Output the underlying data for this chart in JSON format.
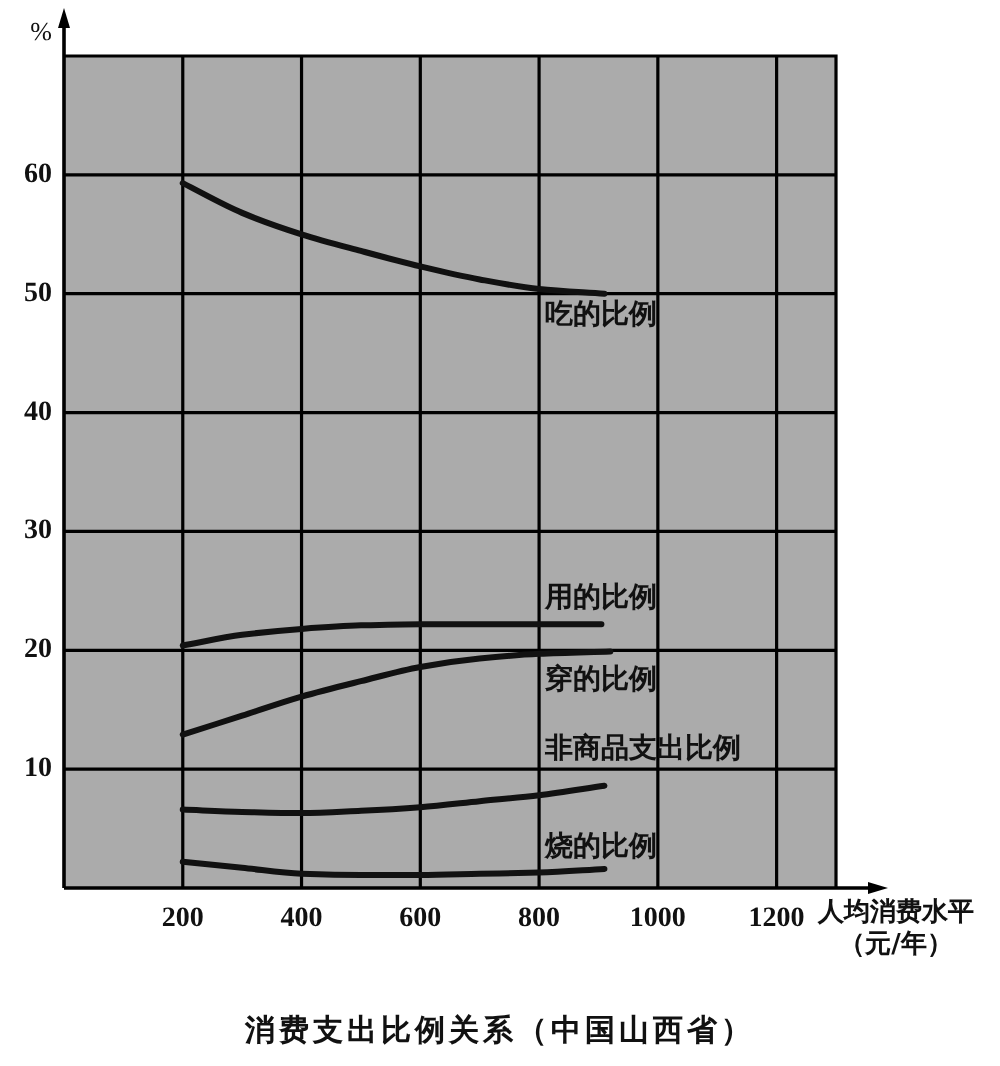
{
  "chart_data": {
    "type": "line",
    "title": "消费支出比例关系（中国山西省）",
    "xlabel": "人均消费水平（元/年）",
    "ylabel": "%",
    "xlim": [
      0,
      1300
    ],
    "ylim": [
      0,
      70
    ],
    "xticks": [
      200,
      400,
      600,
      800,
      1000,
      1200
    ],
    "yticks": [
      10,
      20,
      30,
      40,
      50,
      60
    ],
    "grid": true,
    "series": [
      {
        "name": "吃的比例",
        "color": "#111111",
        "x": [
          200,
          300,
          400,
          500,
          600,
          700,
          800,
          910
        ],
        "values": [
          59.3,
          56.8,
          55.0,
          53.6,
          52.3,
          51.2,
          50.4,
          50.0
        ]
      },
      {
        "name": "用的比例",
        "color": "#111111",
        "x": [
          200,
          300,
          400,
          500,
          600,
          700,
          800,
          905
        ],
        "values": [
          20.4,
          21.3,
          21.8,
          22.1,
          22.2,
          22.2,
          22.2,
          22.2
        ]
      },
      {
        "name": "穿的比例",
        "color": "#111111",
        "x": [
          200,
          300,
          400,
          500,
          600,
          700,
          800,
          920
        ],
        "values": [
          12.9,
          14.5,
          16.1,
          17.4,
          18.6,
          19.3,
          19.7,
          19.9
        ]
      },
      {
        "name": "非商品支出比例",
        "color": "#111111",
        "x": [
          200,
          300,
          400,
          500,
          600,
          700,
          800,
          910
        ],
        "values": [
          6.6,
          6.4,
          6.3,
          6.5,
          6.8,
          7.3,
          7.8,
          8.6
        ]
      },
      {
        "name": "烧的比例",
        "color": "#111111",
        "x": [
          200,
          300,
          400,
          500,
          600,
          700,
          800,
          910
        ],
        "values": [
          2.2,
          1.7,
          1.2,
          1.1,
          1.1,
          1.2,
          1.3,
          1.6
        ]
      }
    ]
  }
}
